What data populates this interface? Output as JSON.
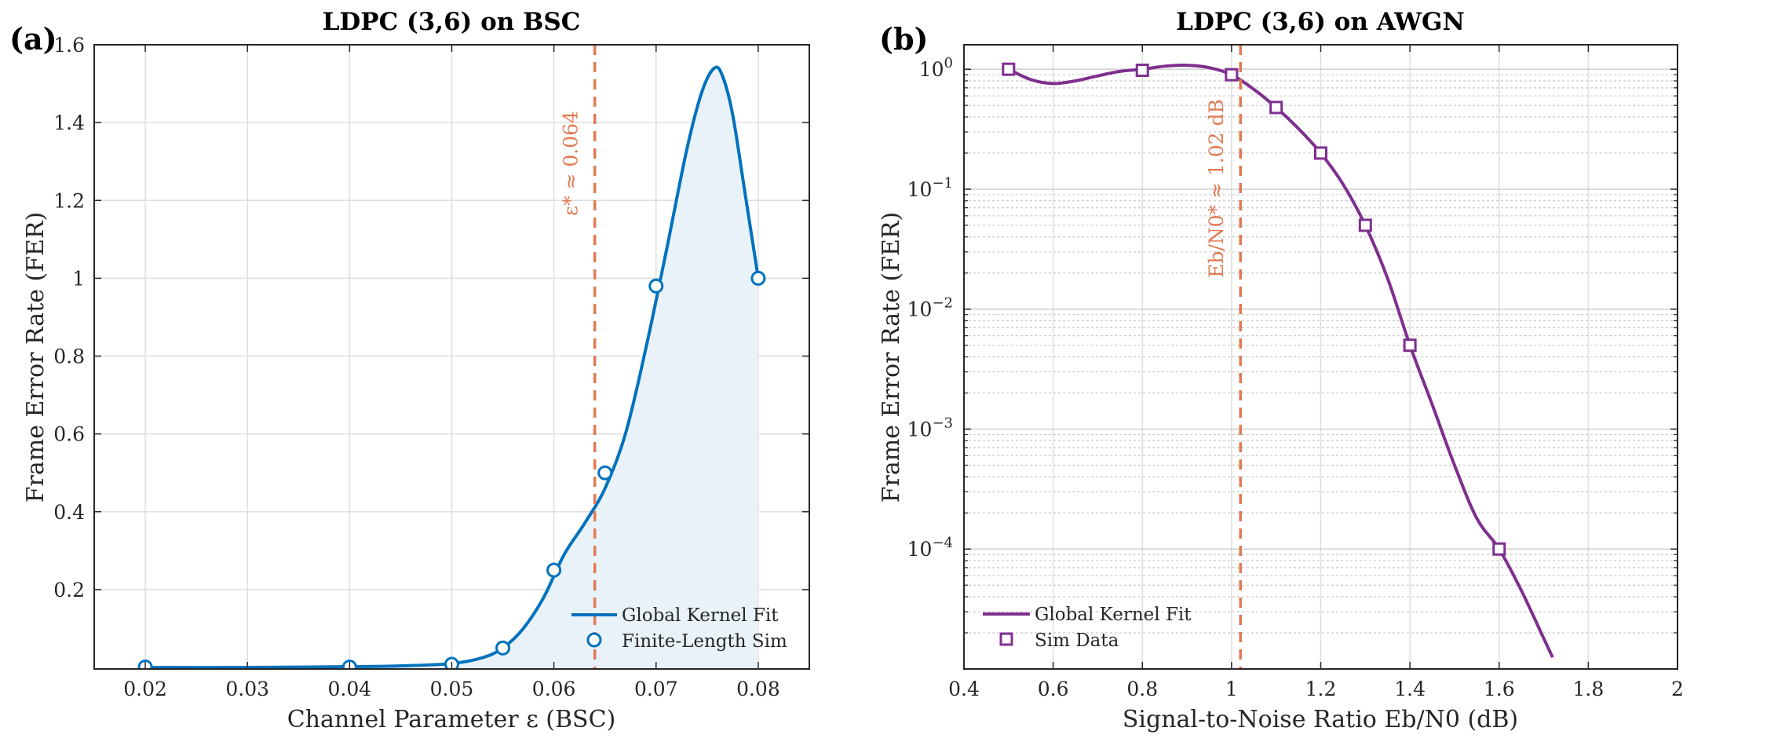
{
  "chart_data": [
    {
      "panel_label": "(a)",
      "type": "line",
      "title": "LDPC (3,6) on BSC",
      "xlabel": "Channel Parameter ε (BSC)",
      "ylabel": "Frame Error Rate (FER)",
      "xlim": [
        0.015,
        0.085
      ],
      "ylim": [
        -0.004,
        1.6
      ],
      "yscale": "linear",
      "grid": true,
      "xticks": [
        0.02,
        0.03,
        0.04,
        0.05,
        0.06,
        0.07,
        0.08
      ],
      "xtick_labels": [
        "0.02",
        "0.03",
        "0.04",
        "0.05",
        "0.06",
        "0.07",
        "0.08"
      ],
      "yticks": [
        0.2,
        0.4,
        0.6,
        0.8,
        1.0,
        1.2,
        1.4,
        1.6
      ],
      "ytick_labels": [
        "0.2",
        "0.4",
        "0.6",
        "0.8",
        "1",
        "1.2",
        "1.4",
        "1.6"
      ],
      "series": [
        {
          "name": "Global Kernel Fit",
          "kind": "line",
          "color": "#0072bd",
          "fill": "#eaf2f9",
          "x": [
            0.02,
            0.03,
            0.04,
            0.045,
            0.05,
            0.053,
            0.055,
            0.057,
            0.059,
            0.061,
            0.063,
            0.065,
            0.067,
            0.069,
            0.071,
            0.073,
            0.0745,
            0.0757,
            0.0765,
            0.0775,
            0.0787,
            0.08
          ],
          "values": [
            0.0,
            0.0,
            0.002,
            0.004,
            0.01,
            0.025,
            0.05,
            0.1,
            0.18,
            0.29,
            0.37,
            0.46,
            0.6,
            0.82,
            1.07,
            1.33,
            1.48,
            1.54,
            1.52,
            1.42,
            1.22,
            1.0
          ]
        },
        {
          "name": "Finite-Length Sim",
          "kind": "scatter",
          "marker": "circle",
          "color": "#0072bd",
          "x": [
            0.02,
            0.04,
            0.05,
            0.055,
            0.06,
            0.065,
            0.07,
            0.08
          ],
          "values": [
            0.001,
            0.001,
            0.008,
            0.05,
            0.25,
            0.5,
            0.98,
            1.0
          ]
        }
      ],
      "threshold": {
        "x": 0.064,
        "label": "ε* ≈ 0.064",
        "color": "#e07b54"
      },
      "legend": {
        "location": "bottom-right",
        "entries": [
          "Global Kernel Fit",
          "Finite-Length Sim"
        ]
      }
    },
    {
      "panel_label": "(b)",
      "type": "line",
      "title": "LDPC (3,6) on AWGN",
      "xlabel": "Signal-to-Noise Ratio Eb/N0 (dB)",
      "ylabel": "Frame Error Rate (FER)",
      "xlim": [
        0.4,
        2.0
      ],
      "ylim": [
        1e-05,
        1.6
      ],
      "yscale": "log",
      "grid": true,
      "xticks": [
        0.4,
        0.6,
        0.8,
        1.0,
        1.2,
        1.4,
        1.6,
        1.8,
        2.0
      ],
      "xtick_labels": [
        "0.4",
        "0.6",
        "0.8",
        "1",
        "1.2",
        "1.4",
        "1.6",
        "1.8",
        "2"
      ],
      "yticks": [
        1,
        0.1,
        0.01,
        0.001,
        0.0001
      ],
      "ytick_labels": [
        {
          "base": "10",
          "exp": "0"
        },
        {
          "base": "10",
          "exp": "−1"
        },
        {
          "base": "10",
          "exp": "−2"
        },
        {
          "base": "10",
          "exp": "−3"
        },
        {
          "base": "10",
          "exp": "−4"
        }
      ],
      "series": [
        {
          "name": "Global Kernel Fit",
          "kind": "line",
          "color": "#7e2f8e",
          "x": [
            0.5,
            0.55,
            0.6,
            0.65,
            0.7,
            0.75,
            0.8,
            0.85,
            0.9,
            0.95,
            1.0,
            1.05,
            1.1,
            1.15,
            1.2,
            1.25,
            1.3,
            1.35,
            1.4,
            1.45,
            1.5,
            1.55,
            1.6,
            1.65,
            1.7,
            1.72
          ],
          "values": [
            1.0,
            0.82,
            0.76,
            0.8,
            0.88,
            0.96,
            1.0,
            1.06,
            1.08,
            1.03,
            0.9,
            0.68,
            0.48,
            0.32,
            0.2,
            0.11,
            0.05,
            0.018,
            0.005,
            0.0016,
            0.0005,
            0.00018,
            0.0001,
            4.5e-05,
            1.8e-05,
            1.25e-05
          ]
        },
        {
          "name": "Sim Data",
          "kind": "scatter",
          "marker": "square",
          "color": "#7e2f8e",
          "x": [
            0.5,
            0.8,
            1.0,
            1.1,
            1.2,
            1.3,
            1.4,
            1.6
          ],
          "values": [
            1.0,
            0.98,
            0.9,
            0.48,
            0.2,
            0.05,
            0.005,
            0.0001
          ]
        }
      ],
      "threshold": {
        "x": 1.02,
        "label": "Eb/N0* ≈ 1.02 dB",
        "color": "#e07b54"
      },
      "legend": {
        "location": "bottom-left",
        "entries": [
          "Global Kernel Fit",
          "Sim Data"
        ]
      }
    }
  ]
}
